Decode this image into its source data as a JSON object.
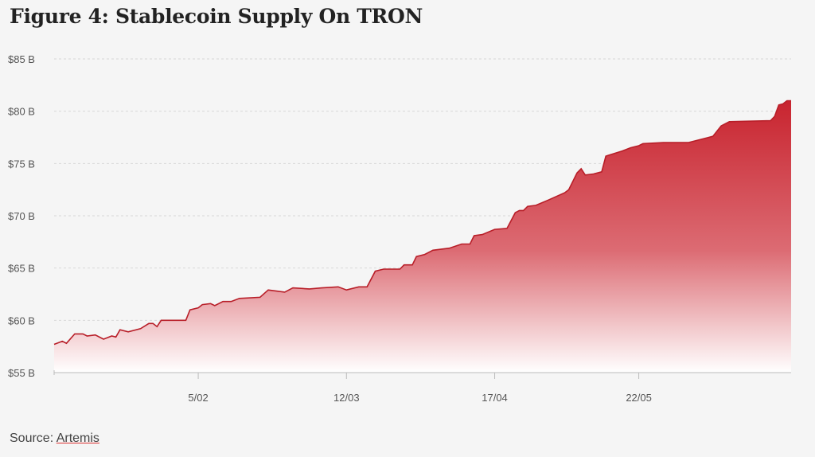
{
  "title": "Figure 4: Stablecoin Supply On TRON",
  "source": {
    "prefix": "Source:",
    "link": "Artemis"
  },
  "colors": {
    "area_top": "#c8242f",
    "area_bottom": "#ffffff",
    "line": "#b81e28",
    "grid": "#d8d8d8",
    "axis": "#bbbbbb"
  },
  "chart_data": {
    "type": "area",
    "title": "Figure 4: Stablecoin Supply On TRON",
    "xlabel": "",
    "ylabel": "",
    "ylim": [
      55,
      85
    ],
    "y_unit": "B",
    "y_tick_labels": [
      "$55 B",
      "$60 B",
      "$65 B",
      "$70 B",
      "$75 B",
      "$80 B",
      "$85 B"
    ],
    "y_tick_values": [
      55,
      60,
      65,
      70,
      75,
      80,
      85
    ],
    "x_tick_labels": [
      "5/02",
      "12/03",
      "17/04",
      "22/05"
    ],
    "x_tick_dates": [
      "2024-02-05",
      "2024-03-12",
      "2024-04-17",
      "2024-05-22"
    ],
    "xlim": [
      "2024-01-01",
      "2024-06-28"
    ],
    "grid": true,
    "legend": "none",
    "series": [
      {
        "points": [
          [
            "2024-01-01",
            57.7
          ],
          [
            "2024-01-03",
            58.0
          ],
          [
            "2024-01-04",
            57.8
          ],
          [
            "2024-01-06",
            58.7
          ],
          [
            "2024-01-08",
            58.7
          ],
          [
            "2024-01-09",
            58.5
          ],
          [
            "2024-01-11",
            58.6
          ],
          [
            "2024-01-13",
            58.2
          ],
          [
            "2024-01-15",
            58.5
          ],
          [
            "2024-01-16",
            58.4
          ],
          [
            "2024-01-17",
            59.1
          ],
          [
            "2024-01-19",
            58.9
          ],
          [
            "2024-01-22",
            59.2
          ],
          [
            "2024-01-24",
            59.7
          ],
          [
            "2024-01-25",
            59.7
          ],
          [
            "2024-01-26",
            59.4
          ],
          [
            "2024-01-27",
            60.0
          ],
          [
            "2024-01-29",
            60.0
          ],
          [
            "2024-02-02",
            60.0
          ],
          [
            "2024-02-03",
            61.0
          ],
          [
            "2024-02-05",
            61.2
          ],
          [
            "2024-02-06",
            61.5
          ],
          [
            "2024-02-08",
            61.6
          ],
          [
            "2024-02-09",
            61.4
          ],
          [
            "2024-02-11",
            61.8
          ],
          [
            "2024-02-13",
            61.8
          ],
          [
            "2024-02-15",
            62.1
          ],
          [
            "2024-02-20",
            62.2
          ],
          [
            "2024-02-22",
            62.9
          ],
          [
            "2024-02-24",
            62.8
          ],
          [
            "2024-02-26",
            62.7
          ],
          [
            "2024-02-28",
            63.1
          ],
          [
            "2024-03-03",
            63.0
          ],
          [
            "2024-03-06",
            63.1
          ],
          [
            "2024-03-10",
            63.2
          ],
          [
            "2024-03-12",
            62.9
          ],
          [
            "2024-03-15",
            63.2
          ],
          [
            "2024-03-17",
            63.2
          ],
          [
            "2024-03-19",
            64.7
          ],
          [
            "2024-03-21",
            64.9
          ],
          [
            "2024-03-25",
            64.9
          ],
          [
            "2024-03-26",
            65.3
          ],
          [
            "2024-03-28",
            65.3
          ],
          [
            "2024-03-29",
            66.1
          ],
          [
            "2024-03-31",
            66.3
          ],
          [
            "2024-04-02",
            66.7
          ],
          [
            "2024-04-06",
            66.9
          ],
          [
            "2024-04-09",
            67.3
          ],
          [
            "2024-04-11",
            67.3
          ],
          [
            "2024-04-12",
            68.1
          ],
          [
            "2024-04-14",
            68.2
          ],
          [
            "2024-04-17",
            68.7
          ],
          [
            "2024-04-20",
            68.8
          ],
          [
            "2024-04-22",
            70.3
          ],
          [
            "2024-04-23",
            70.5
          ],
          [
            "2024-04-24",
            70.5
          ],
          [
            "2024-04-25",
            70.9
          ],
          [
            "2024-04-27",
            71.0
          ],
          [
            "2024-04-30",
            71.5
          ],
          [
            "2024-05-04",
            72.2
          ],
          [
            "2024-05-05",
            72.5
          ],
          [
            "2024-05-07",
            74.1
          ],
          [
            "2024-05-08",
            74.5
          ],
          [
            "2024-05-09",
            73.9
          ],
          [
            "2024-05-11",
            74.0
          ],
          [
            "2024-05-13",
            74.2
          ],
          [
            "2024-05-14",
            75.7
          ],
          [
            "2024-05-18",
            76.2
          ],
          [
            "2024-05-20",
            76.5
          ],
          [
            "2024-05-22",
            76.7
          ],
          [
            "2024-05-23",
            76.9
          ],
          [
            "2024-05-28",
            77.0
          ],
          [
            "2024-06-03",
            77.0
          ],
          [
            "2024-06-09",
            77.6
          ],
          [
            "2024-06-11",
            78.6
          ],
          [
            "2024-06-13",
            79.0
          ],
          [
            "2024-06-23",
            79.1
          ],
          [
            "2024-06-24",
            79.5
          ],
          [
            "2024-06-25",
            80.6
          ],
          [
            "2024-06-26",
            80.7
          ],
          [
            "2024-06-27",
            81.0
          ],
          [
            "2024-06-28",
            81.0
          ]
        ]
      }
    ]
  }
}
